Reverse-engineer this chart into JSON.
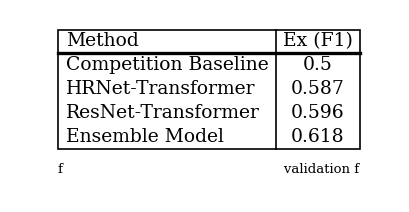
{
  "headers": [
    "Method",
    "Ex (F1)"
  ],
  "rows": [
    [
      "Competition Baseline",
      "0.5"
    ],
    [
      "HRNet-Transformer",
      "0.587"
    ],
    [
      "ResNet-Transformer",
      "0.596"
    ],
    [
      "Ensemble Model",
      "0.618"
    ]
  ],
  "background_color": "#ffffff",
  "text_color": "#000000",
  "header_fontsize": 13.5,
  "cell_fontsize": 13.5,
  "col_split": 0.72,
  "figsize": [
    4.1,
    2.12
  ],
  "dpi": 100,
  "caption_text": "f              validation f"
}
